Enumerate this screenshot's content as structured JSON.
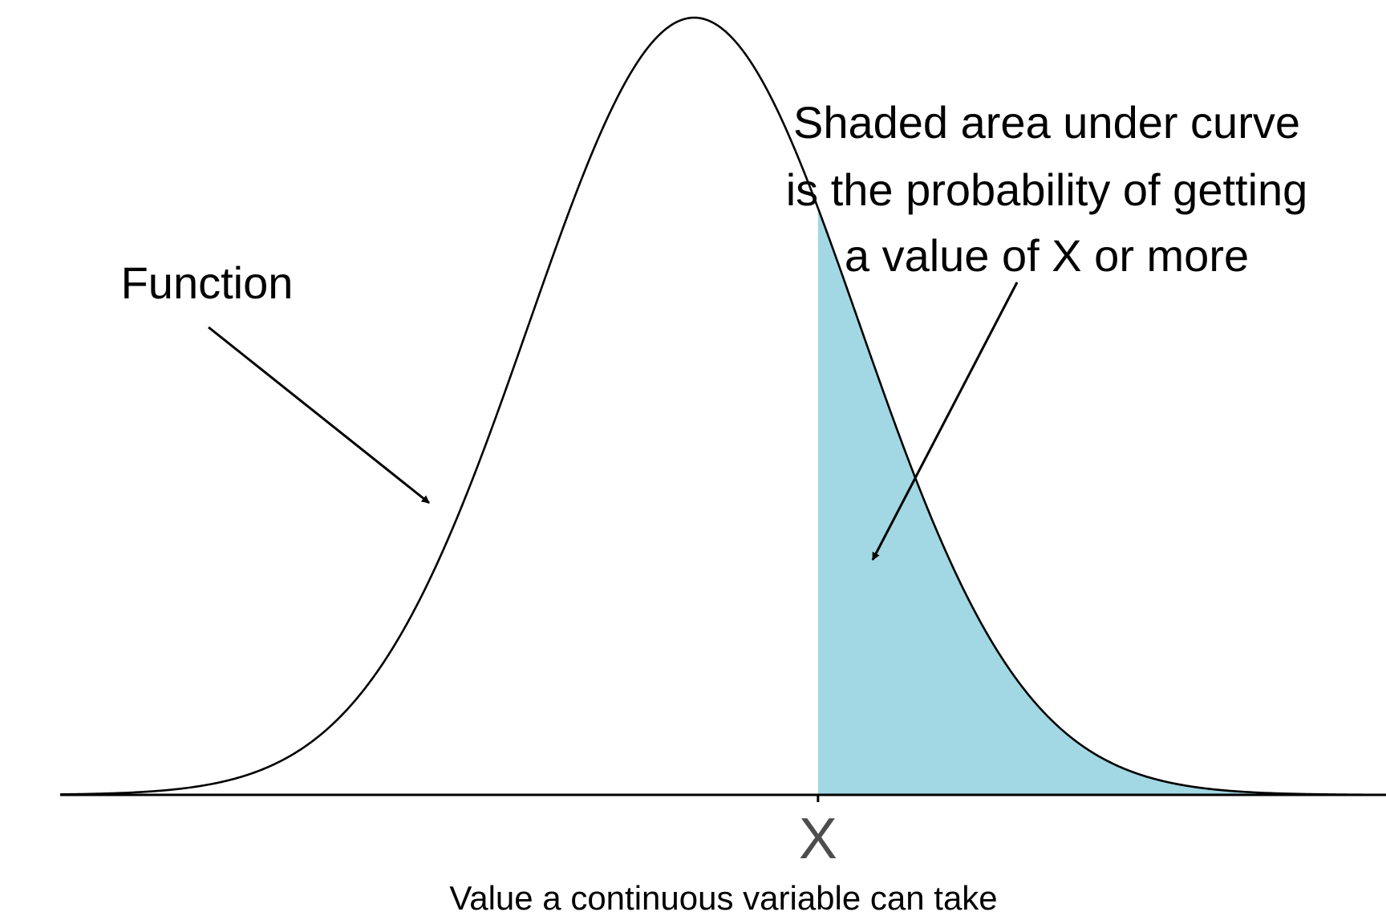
{
  "diagram": {
    "curve_label": "Function",
    "area_annotation_lines": [
      "Shaded area under curve",
      "is the probability of getting",
      "a value of X or more"
    ],
    "tick_label": "X",
    "axis_title": "Value a continuous variable can take"
  },
  "distribution": {
    "mean": 0,
    "sd": 1,
    "x_range": [
      -3.84,
      4.19
    ],
    "threshold_z": 0.75
  },
  "colors": {
    "curve": "#000000",
    "shaded_area": "#a2d8e3",
    "axis": "#000000",
    "tick_label": "#4d4d4d",
    "text": "#000000",
    "background": "#ffffff"
  }
}
